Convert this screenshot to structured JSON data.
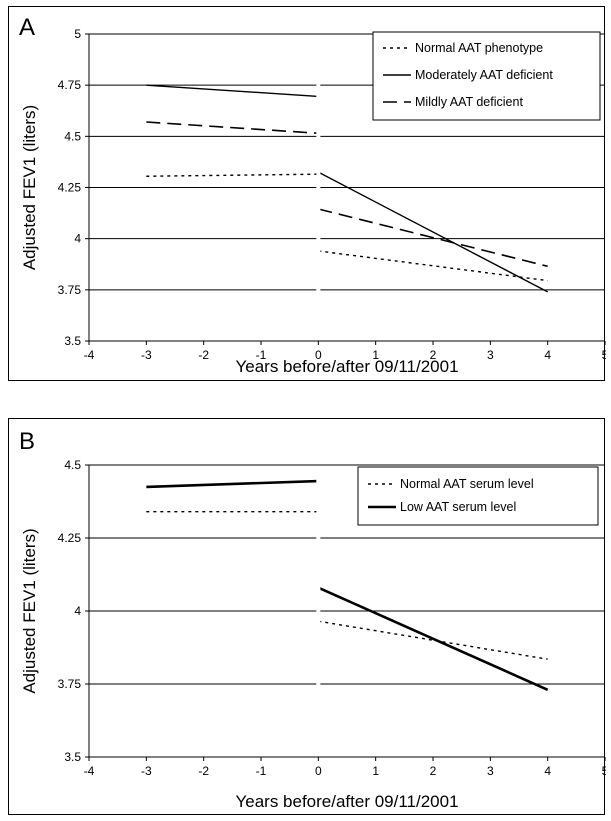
{
  "chart_data": [
    {
      "type": "line",
      "panel_label": "A",
      "xlabel": "Years before/after 09/11/2001",
      "ylabel": "Adjusted FEV1 (liters)",
      "xlim": [
        -4,
        5
      ],
      "ylim": [
        3.5,
        5
      ],
      "x_ticks": [
        "-4",
        "-3",
        "-2",
        "-1",
        "0",
        "1",
        "2",
        "3",
        "4",
        "5"
      ],
      "y_ticks": [
        "3.5",
        "3.75",
        "4",
        "4.25",
        "4.5",
        "4.75",
        "5"
      ],
      "grid": "horizontal",
      "legend_position": "top-right",
      "series": [
        {
          "name": "Normal AAT phenotype",
          "style": "dotted",
          "color": "#000000",
          "segments": [
            [
              {
                "x": -3,
                "y": 4.305
              },
              {
                "x": 0,
                "y": 4.315
              }
            ],
            [
              {
                "x": 0,
                "y": 3.94
              },
              {
                "x": 4,
                "y": 3.795
              }
            ]
          ]
        },
        {
          "name": "Moderately AAT deficient",
          "style": "solid",
          "color": "#000000",
          "segments": [
            [
              {
                "x": -3,
                "y": 4.75
              },
              {
                "x": 0,
                "y": 4.695
              }
            ],
            [
              {
                "x": 0,
                "y": 4.325
              },
              {
                "x": 4,
                "y": 3.74
              }
            ]
          ]
        },
        {
          "name": "Mildly AAT deficient",
          "style": "dashed",
          "color": "#000000",
          "segments": [
            [
              {
                "x": -3,
                "y": 4.57
              },
              {
                "x": 0,
                "y": 4.515
              }
            ],
            [
              {
                "x": 0,
                "y": 4.145
              },
              {
                "x": 4,
                "y": 3.865
              }
            ]
          ]
        }
      ]
    },
    {
      "type": "line",
      "panel_label": "B",
      "xlabel": "Years before/after 09/11/2001",
      "ylabel": "Adjusted FEV1 (liters)",
      "xlim": [
        -4,
        5
      ],
      "ylim": [
        3.5,
        4.5
      ],
      "x_ticks": [
        "-4",
        "-3",
        "-2",
        "-1",
        "0",
        "1",
        "2",
        "3",
        "4",
        "5"
      ],
      "y_ticks": [
        "3.5",
        "3.75",
        "4",
        "4.25",
        "4.5"
      ],
      "grid": "horizontal",
      "legend_position": "top-right",
      "series": [
        {
          "name": "Normal AAT serum level",
          "style": "dotted",
          "color": "#000000",
          "segments": [
            [
              {
                "x": -3,
                "y": 4.34
              },
              {
                "x": 0,
                "y": 4.34
              }
            ],
            [
              {
                "x": 0,
                "y": 3.965
              },
              {
                "x": 4,
                "y": 3.835
              }
            ]
          ]
        },
        {
          "name": "Low AAT serum level",
          "style": "bold",
          "color": "#000000",
          "segments": [
            [
              {
                "x": -3,
                "y": 4.425
              },
              {
                "x": 0,
                "y": 4.445
              }
            ],
            [
              {
                "x": 0,
                "y": 4.08
              },
              {
                "x": 4,
                "y": 3.73
              }
            ]
          ]
        }
      ]
    }
  ]
}
